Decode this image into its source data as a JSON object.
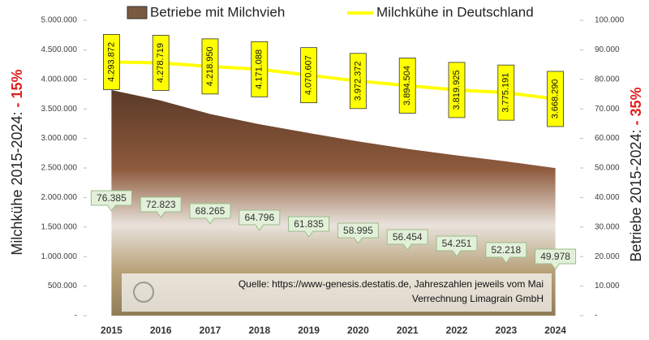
{
  "chart_data": {
    "type": "line-area",
    "legend": [
      "Betriebe mit Milchvieh",
      "Milchkühe in Deutschland"
    ],
    "y_title": "Milchkühe 2015-2024:",
    "y_title_highlight": "- 15%",
    "y2_title": "Betriebe 2015-2024:",
    "y2_title_highlight": "- 35%",
    "source": [
      "Quelle: https://www-genesis.destatis.de, Jahreszahlen jeweils vom Mai",
      "Verrechnung Limagrain GmbH"
    ],
    "categories": [
      "2015",
      "2016",
      "2017",
      "2018",
      "2019",
      "2020",
      "2021",
      "2022",
      "2023",
      "2024"
    ],
    "series": [
      {
        "name": "Betriebe mit Milchvieh",
        "type": "area",
        "axis": "y2",
        "color": "#8a6a4a",
        "values": [
          76385,
          72823,
          68265,
          64796,
          61835,
          58995,
          56454,
          54251,
          52218,
          49978
        ],
        "value_labels": [
          "76.385",
          "72.823",
          "68.265",
          "64.796",
          "61.835",
          "58.995",
          "56.454",
          "54.251",
          "52.218",
          "49.978"
        ]
      },
      {
        "name": "Milchkühe in Deutschland",
        "type": "line",
        "axis": "y",
        "color": "#ffff00",
        "values": [
          4293872,
          4278719,
          4218950,
          4171088,
          4070607,
          3972372,
          3894504,
          3819925,
          3775191,
          3668290
        ],
        "value_labels": [
          "4.293.872",
          "4.278.719",
          "4.218.950",
          "4.171.088",
          "4.070.607",
          "3.972.372",
          "3.894.504",
          "3.819.925",
          "3.775.191",
          "3.668.290"
        ]
      }
    ],
    "ylim": [
      0,
      5000000
    ],
    "yticks": [
      {
        "value": 0,
        "label": "-"
      },
      {
        "value": 500000,
        "label": "500.000"
      },
      {
        "value": 1000000,
        "label": "1.000.000"
      },
      {
        "value": 1500000,
        "label": "1.500.000"
      },
      {
        "value": 2000000,
        "label": "2.000.000"
      },
      {
        "value": 2500000,
        "label": "2.500.000"
      },
      {
        "value": 3000000,
        "label": "3.000.000"
      },
      {
        "value": 3500000,
        "label": "3.500.000"
      },
      {
        "value": 4000000,
        "label": "4.000.000"
      },
      {
        "value": 4500000,
        "label": "4.500.000"
      },
      {
        "value": 5000000,
        "label": "5.000.000"
      }
    ],
    "y2lim": [
      0,
      100000
    ],
    "y2ticks": [
      {
        "value": 0,
        "label": "-"
      },
      {
        "value": 10000,
        "label": "10.000"
      },
      {
        "value": 20000,
        "label": "20.000"
      },
      {
        "value": 30000,
        "label": "30.000"
      },
      {
        "value": 40000,
        "label": "40.000"
      },
      {
        "value": 50000,
        "label": "50.000"
      },
      {
        "value": 60000,
        "label": "60.000"
      },
      {
        "value": 70000,
        "label": "70.000"
      },
      {
        "value": 80000,
        "label": "80.000"
      },
      {
        "value": 90000,
        "label": "90.000"
      },
      {
        "value": 100000,
        "label": "100.000"
      }
    ]
  }
}
